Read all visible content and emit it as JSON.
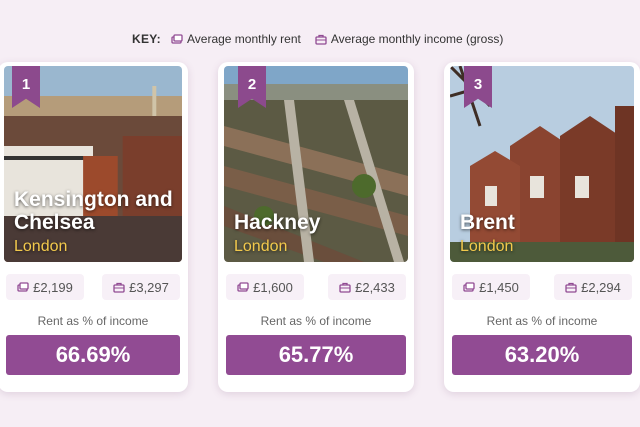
{
  "key": {
    "label": "KEY:",
    "rent_label": "Average monthly rent",
    "income_label": "Average monthly income (gross)",
    "rent_icon": "money-stack-icon",
    "income_icon": "briefcase-icon"
  },
  "colors": {
    "accent": "#914b93",
    "city": "#f2c94c",
    "background": "#f6eef5"
  },
  "cards": [
    {
      "rank": "1",
      "area": "Kensington and Chelsea",
      "city": "London",
      "rent": "£2,199",
      "income": "£3,297",
      "ratio_label": "Rent as % of income",
      "pct": "66.69%"
    },
    {
      "rank": "2",
      "area": "Hackney",
      "city": "London",
      "rent": "£1,600",
      "income": "£2,433",
      "ratio_label": "Rent as % of income",
      "pct": "65.77%"
    },
    {
      "rank": "3",
      "area": "Brent",
      "city": "London",
      "rent": "£1,450",
      "income": "£2,294",
      "ratio_label": "Rent as % of income",
      "pct": "63.20%"
    }
  ]
}
